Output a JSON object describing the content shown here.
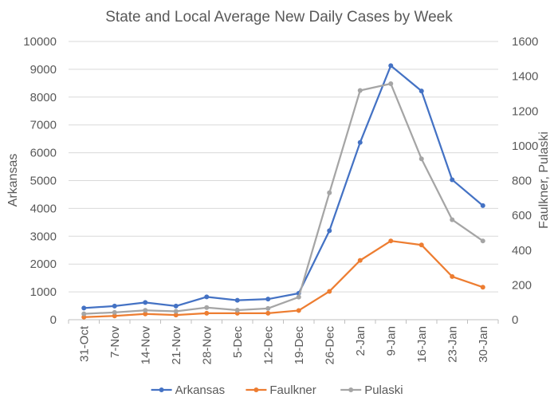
{
  "chart_data": {
    "type": "line",
    "title": "State and Local Average New Daily Cases by Week",
    "xlabel": "",
    "ylabel_left": "Arkansas",
    "ylabel_right": "Faulkner, Pulaski",
    "categories": [
      "31-Oct",
      "7-Nov",
      "14-Nov",
      "21-Nov",
      "28-Nov",
      "5-Dec",
      "12-Dec",
      "19-Dec",
      "26-Dec",
      "2-Jan",
      "9-Jan",
      "16-Jan",
      "23-Jan",
      "30-Jan"
    ],
    "ylim_left": [
      0,
      10000
    ],
    "yticks_left": [
      0,
      1000,
      2000,
      3000,
      4000,
      5000,
      6000,
      7000,
      8000,
      9000,
      10000
    ],
    "ylim_right": [
      0,
      1600
    ],
    "yticks_right": [
      0,
      200,
      400,
      600,
      800,
      1000,
      1200,
      1400,
      1600
    ],
    "grid": true,
    "legend": "bottom",
    "series": [
      {
        "name": "Arkansas",
        "axis": "left",
        "color": "#4472C4",
        "values": [
          420,
          490,
          620,
          490,
          820,
          700,
          740,
          950,
          3200,
          6370,
          9130,
          8220,
          5030,
          4100
        ]
      },
      {
        "name": "Faulkner",
        "axis": "right",
        "color": "#ED7D31",
        "values": [
          15,
          22,
          33,
          27,
          37,
          37,
          37,
          53,
          163,
          341,
          453,
          430,
          248,
          187
        ]
      },
      {
        "name": "Pulaski",
        "axis": "right",
        "color": "#A5A5A5",
        "values": [
          34,
          42,
          54,
          48,
          70,
          55,
          65,
          130,
          730,
          1318,
          1357,
          925,
          575,
          453
        ]
      }
    ]
  }
}
